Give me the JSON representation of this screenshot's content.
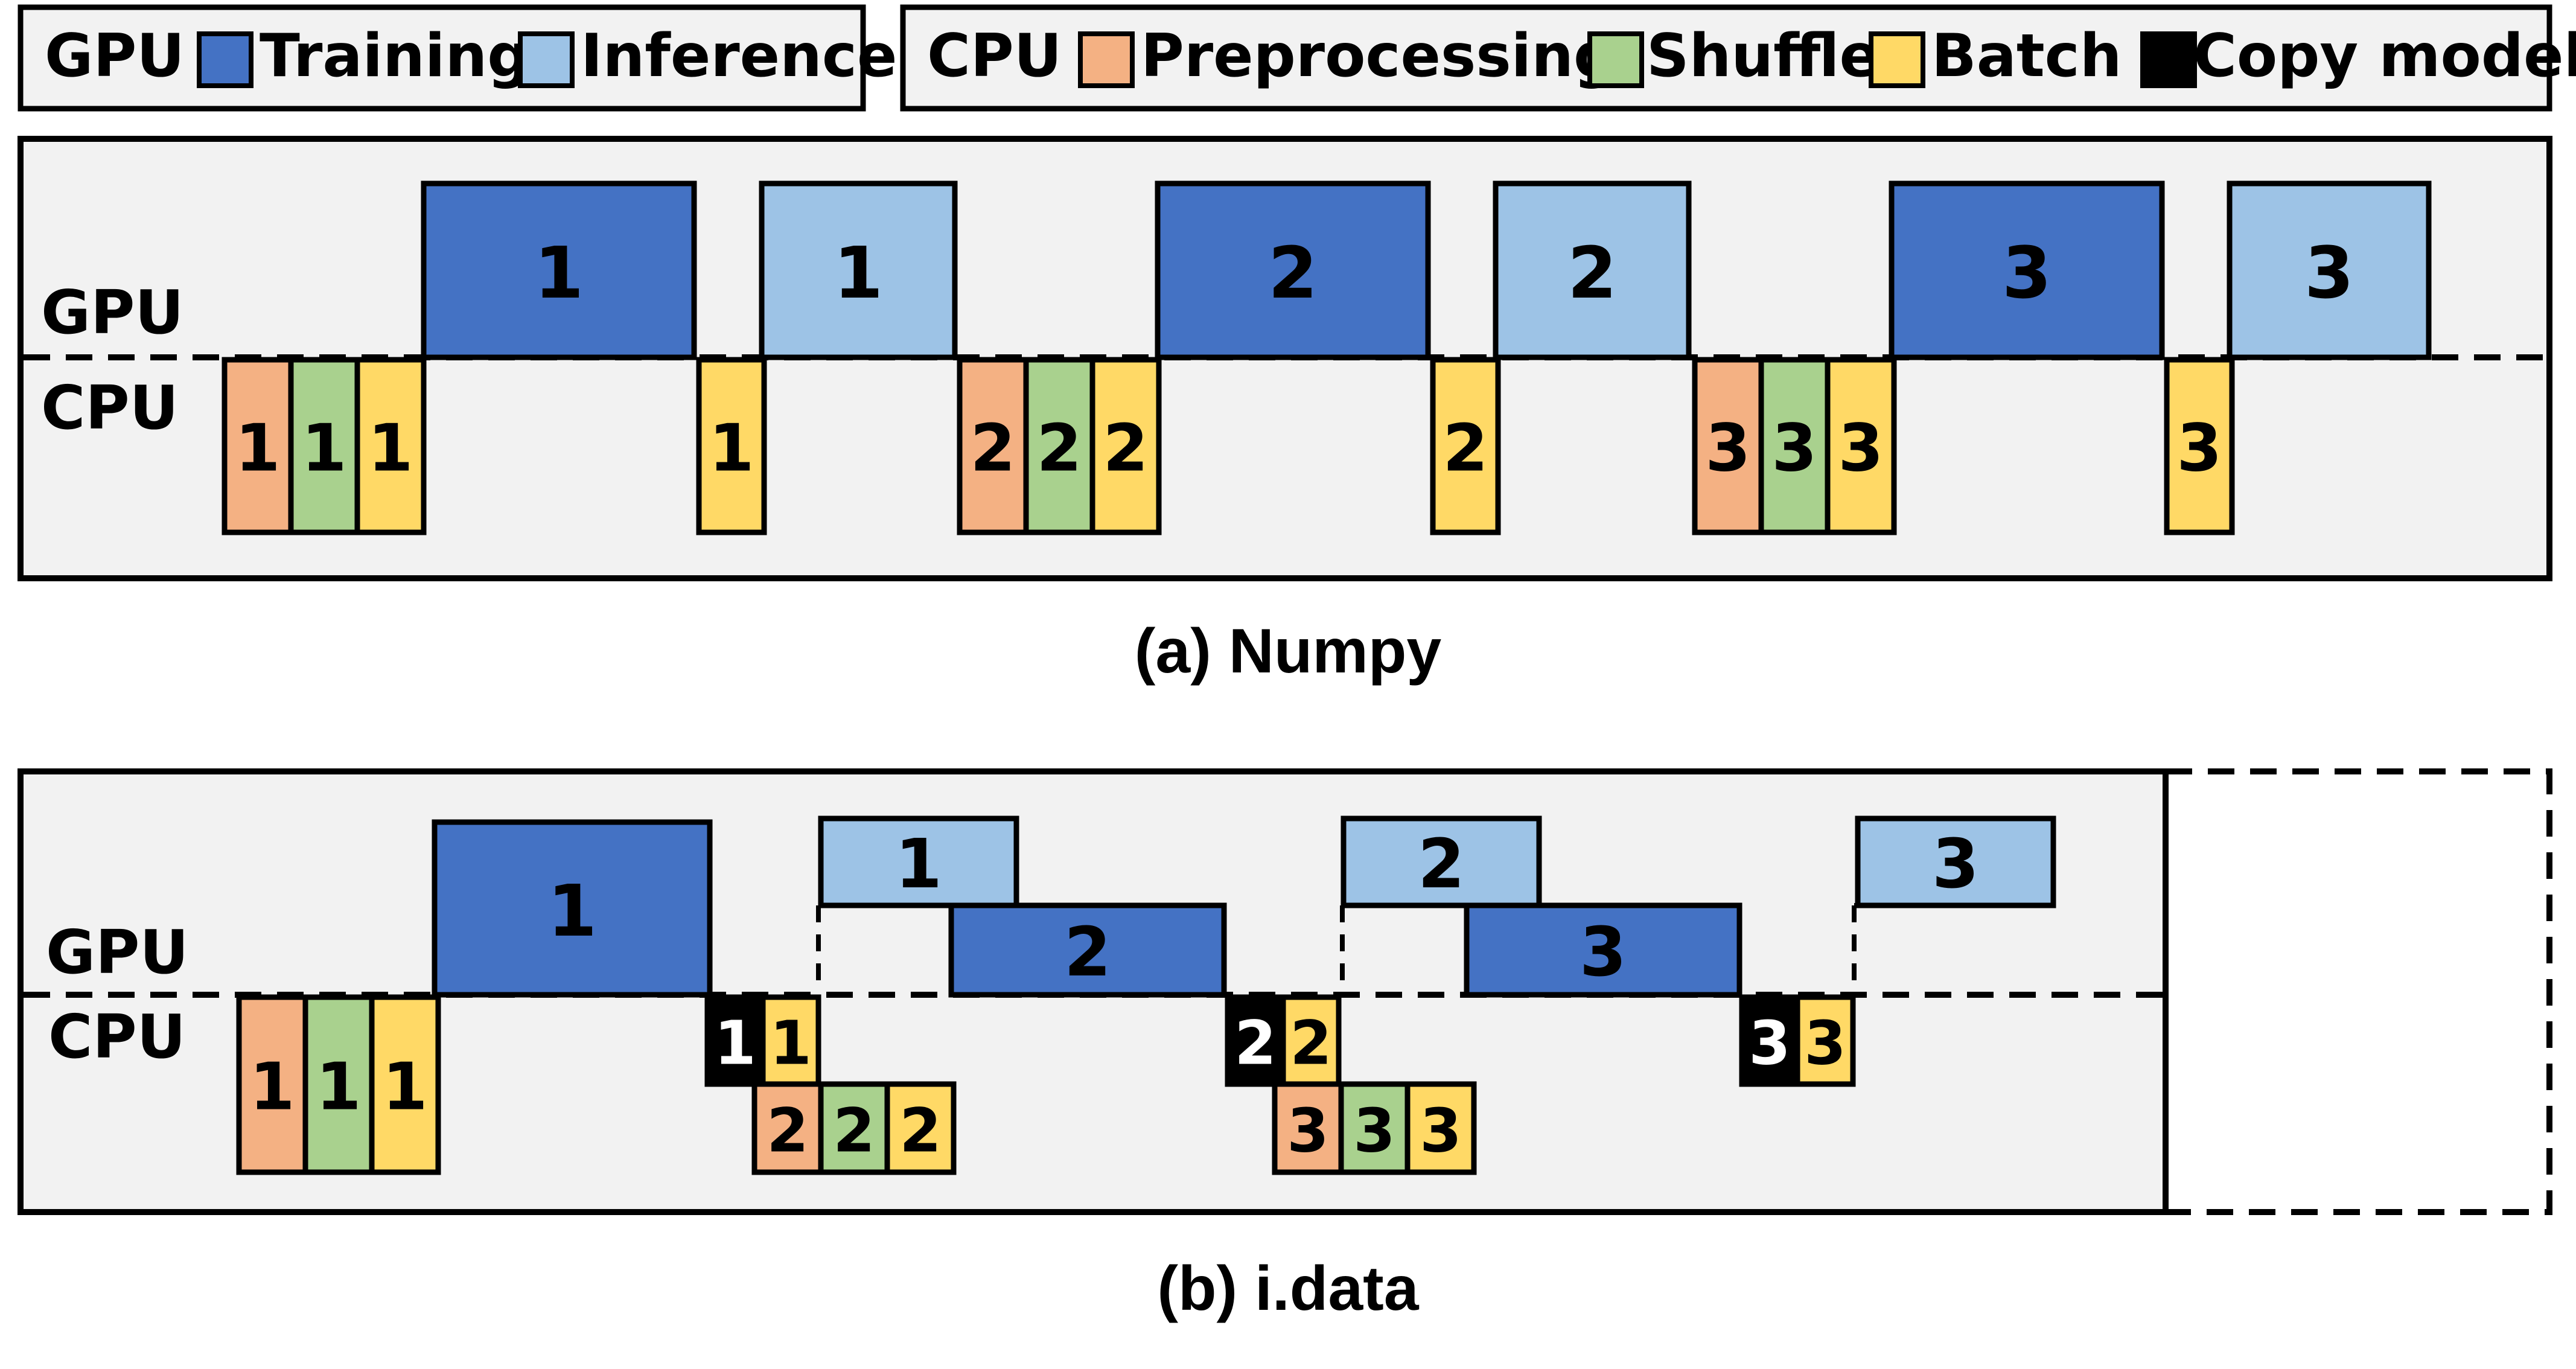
{
  "colors": {
    "training": "#4472C4",
    "inference": "#9DC3E6",
    "preprocessing": "#F4B183",
    "shuffle": "#A9D18E",
    "batch": "#FFD966",
    "copy_model": "#000000",
    "panel": "#F2F2F2"
  },
  "legend": {
    "gpu_title": "GPU",
    "gpu_items": [
      {
        "key": "training",
        "label": "Training"
      },
      {
        "key": "inference",
        "label": "Inference"
      }
    ],
    "cpu_title": "CPU",
    "cpu_items": [
      {
        "key": "preprocessing",
        "label": "Preprocessing"
      },
      {
        "key": "shuffle",
        "label": "Shuffle"
      },
      {
        "key": "batch",
        "label": "Batch"
      },
      {
        "key": "copy_model",
        "label": "Copy model"
      }
    ]
  },
  "panel_a": {
    "gpu_label": "GPU",
    "cpu_label": "CPU",
    "caption": "(a) Numpy",
    "gpu_blocks": [
      {
        "kind": "training",
        "text": "1"
      },
      {
        "kind": "inference",
        "text": "1"
      },
      {
        "kind": "training",
        "text": "2"
      },
      {
        "kind": "inference",
        "text": "2"
      },
      {
        "kind": "training",
        "text": "3"
      },
      {
        "kind": "inference",
        "text": "3"
      }
    ],
    "cpu_blocks": [
      {
        "kind": "preprocessing",
        "text": "1"
      },
      {
        "kind": "shuffle",
        "text": "1"
      },
      {
        "kind": "batch",
        "text": "1"
      },
      {
        "kind": "batch",
        "text": "1"
      },
      {
        "kind": "preprocessing",
        "text": "2"
      },
      {
        "kind": "shuffle",
        "text": "2"
      },
      {
        "kind": "batch",
        "text": "2"
      },
      {
        "kind": "batch",
        "text": "2"
      },
      {
        "kind": "preprocessing",
        "text": "3"
      },
      {
        "kind": "shuffle",
        "text": "3"
      },
      {
        "kind": "batch",
        "text": "3"
      },
      {
        "kind": "batch",
        "text": "3"
      }
    ]
  },
  "panel_b": {
    "gpu_label": "GPU",
    "cpu_label": "CPU",
    "caption": "(b) i.data",
    "gpu_blocks": [
      {
        "kind": "training",
        "text": "1"
      },
      {
        "kind": "inference",
        "text": "1"
      },
      {
        "kind": "training",
        "text": "2"
      },
      {
        "kind": "inference",
        "text": "2"
      },
      {
        "kind": "training",
        "text": "3"
      },
      {
        "kind": "inference",
        "text": "3"
      }
    ],
    "cpu_blocks": [
      {
        "kind": "preprocessing",
        "text": "1"
      },
      {
        "kind": "shuffle",
        "text": "1"
      },
      {
        "kind": "batch",
        "text": "1"
      },
      {
        "kind": "copy_model",
        "text": "1"
      },
      {
        "kind": "batch",
        "text": "1"
      },
      {
        "kind": "preprocessing",
        "text": "2"
      },
      {
        "kind": "shuffle",
        "text": "2"
      },
      {
        "kind": "batch",
        "text": "2"
      },
      {
        "kind": "copy_model",
        "text": "2"
      },
      {
        "kind": "batch",
        "text": "2"
      },
      {
        "kind": "preprocessing",
        "text": "3"
      },
      {
        "kind": "shuffle",
        "text": "3"
      },
      {
        "kind": "batch",
        "text": "3"
      },
      {
        "kind": "copy_model",
        "text": "3"
      },
      {
        "kind": "batch",
        "text": "3"
      }
    ]
  }
}
